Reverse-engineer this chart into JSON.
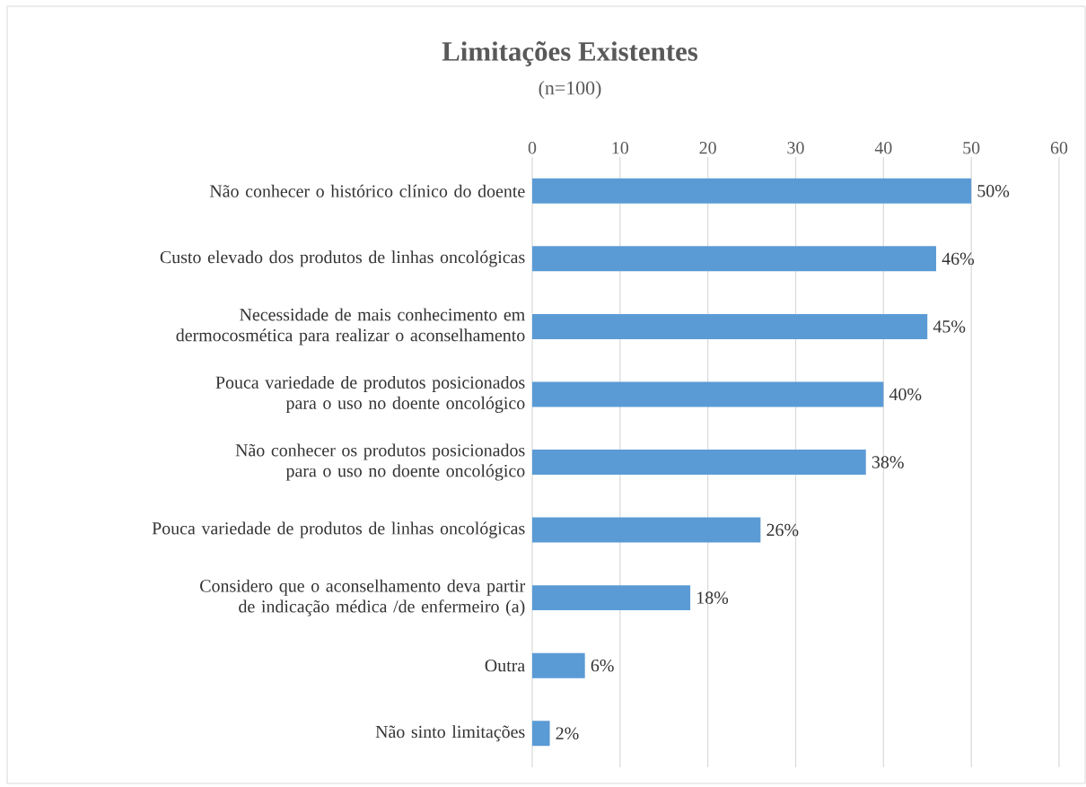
{
  "chart_data": {
    "type": "bar",
    "orientation": "horizontal",
    "title": "Limitações Existentes",
    "subtitle": "(n=100)",
    "categories": [
      "Não conhecer o histórico clínico do doente",
      "Custo elevado dos produtos de linhas oncológicas",
      "Necessidade de mais conhecimento em dermocosmética para realizar o aconselhamento",
      "Pouca variedade de produtos posicionados para o uso no doente oncológico",
      "Não conhecer os produtos posicionados para o uso no doente oncológico",
      "Pouca variedade de produtos de linhas oncológicas",
      "Considero que o aconselhamento deva partir de indicação médica /de enfermeiro (a)",
      "Outra",
      "Não sinto limitações"
    ],
    "values": [
      50,
      46,
      45,
      40,
      38,
      26,
      18,
      6,
      2
    ],
    "value_labels": [
      "50%",
      "46%",
      "45%",
      "40%",
      "38%",
      "26%",
      "18%",
      "6%",
      "2%"
    ],
    "color": "#5b9bd5",
    "xlim": [
      0,
      60
    ],
    "xticks": [
      0,
      10,
      20,
      30,
      40,
      50,
      60
    ],
    "grid": "x"
  }
}
